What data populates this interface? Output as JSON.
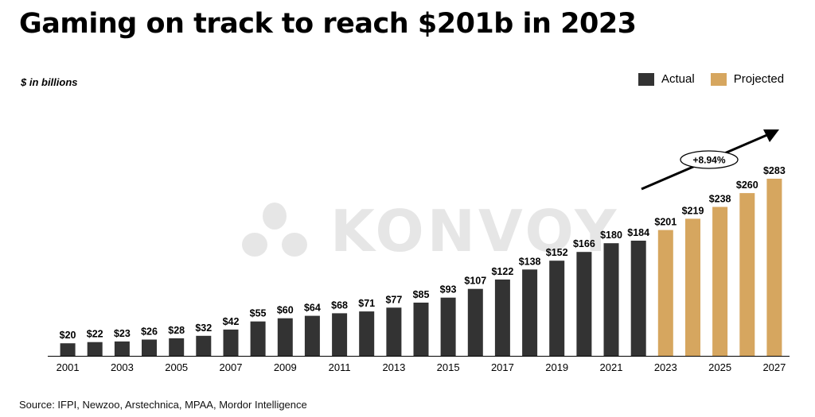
{
  "title": "Gaming on track to reach $201b in 2023",
  "unit_label": "$ in billions",
  "legend": [
    {
      "label": "Actual",
      "color": "#333333"
    },
    {
      "label": "Projected",
      "color": "#d6a65f"
    }
  ],
  "source": "Source: IFPI, Newzoo, Arstechnica, MPAA, Mordor Intelligence",
  "watermark": "KONVOY",
  "chart_data": {
    "type": "bar",
    "title": "Gaming on track to reach $201b in 2023",
    "xlabel": "",
    "ylabel": "$ in billions",
    "categories": [
      "2001",
      "2002",
      "2003",
      "2004",
      "2005",
      "2006",
      "2007",
      "2008",
      "2009",
      "2010",
      "2011",
      "2012",
      "2013",
      "2014",
      "2015",
      "2016",
      "2017",
      "2018",
      "2019",
      "2020",
      "2021",
      "2022",
      "2023",
      "2024",
      "2025",
      "2026",
      "2027"
    ],
    "x_tick_labels": [
      "2001",
      "2003",
      "2005",
      "2007",
      "2009",
      "2011",
      "2013",
      "2015",
      "2017",
      "2019",
      "2021",
      "2023",
      "2025",
      "2027"
    ],
    "series": [
      {
        "name": "Actual",
        "color": "#333333",
        "values": [
          20,
          22,
          23,
          26,
          28,
          32,
          42,
          55,
          60,
          64,
          68,
          71,
          77,
          85,
          93,
          107,
          122,
          138,
          152,
          166,
          180,
          184,
          null,
          null,
          null,
          null,
          null
        ]
      },
      {
        "name": "Projected",
        "color": "#d6a65f",
        "values": [
          null,
          null,
          null,
          null,
          null,
          null,
          null,
          null,
          null,
          null,
          null,
          null,
          null,
          null,
          null,
          null,
          null,
          null,
          null,
          null,
          null,
          null,
          201,
          219,
          238,
          260,
          283
        ]
      }
    ],
    "data_labels": [
      "$20",
      "$22",
      "$23",
      "$26",
      "$28",
      "$32",
      "$42",
      "$55",
      "$60",
      "$64",
      "$68",
      "$71",
      "$77",
      "$85",
      "$93",
      "$107",
      "$122",
      "$138",
      "$152",
      "$166",
      "$180",
      "$184",
      "$201",
      "$219",
      "$238",
      "$260",
      "$283"
    ],
    "annotation": "+8.94%",
    "ylim": [
      0,
      283
    ],
    "grid": false,
    "legend_position": "top-right"
  }
}
